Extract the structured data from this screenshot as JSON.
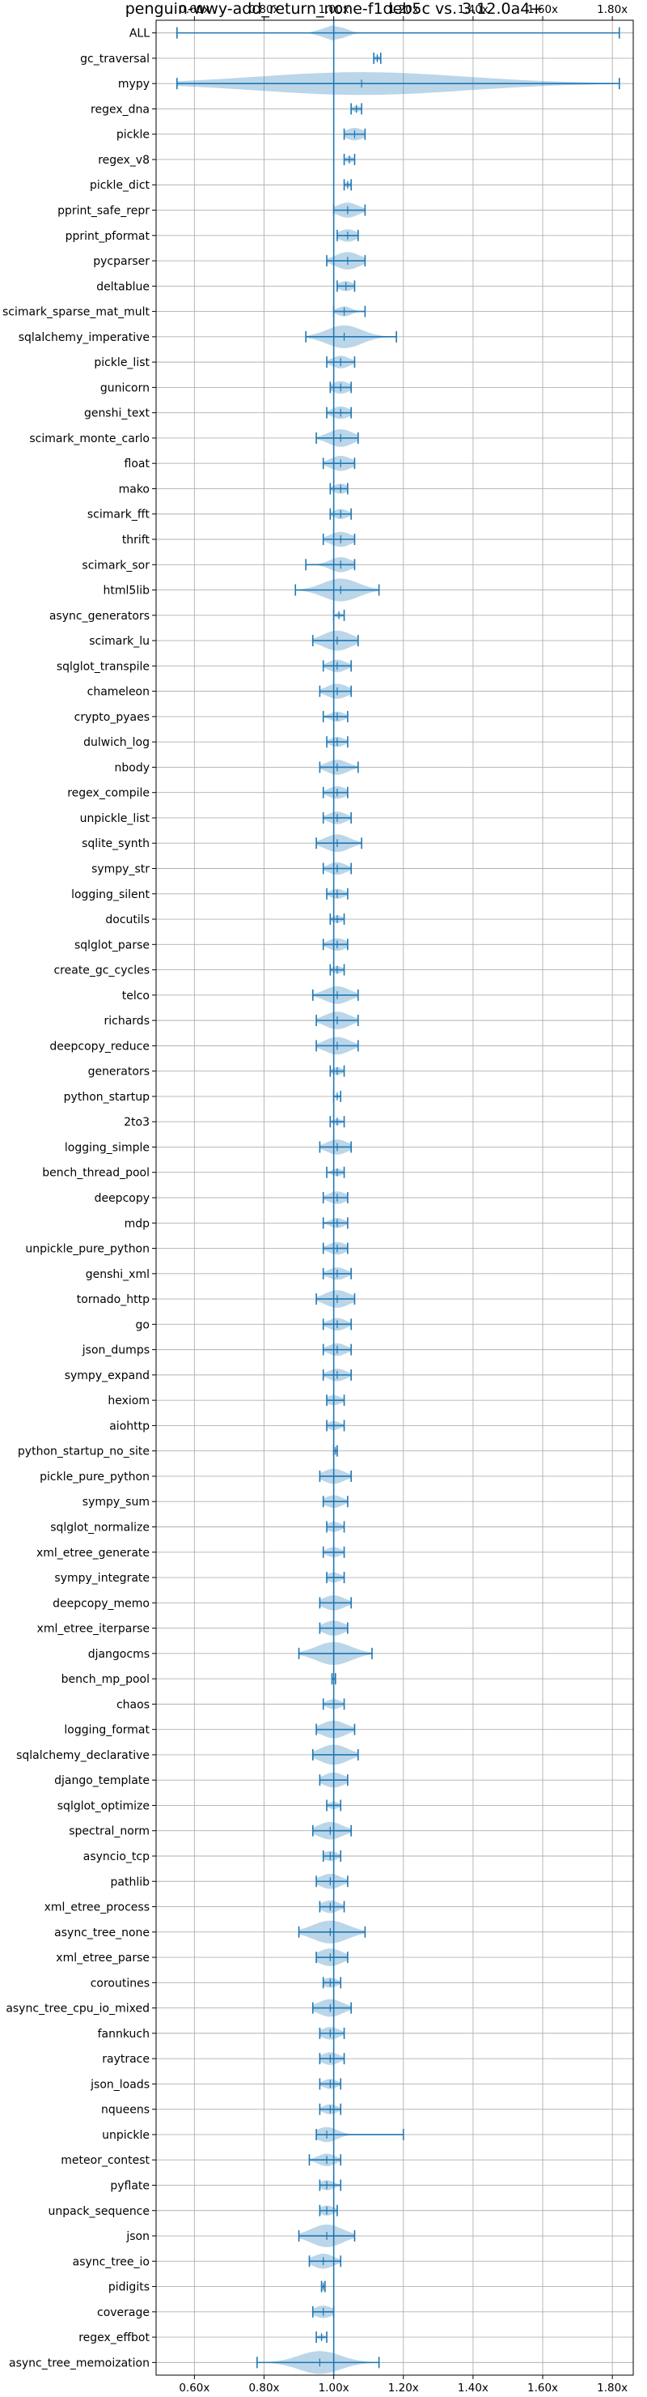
{
  "chart_data": {
    "type": "violin",
    "orientation": "horizontal",
    "title": "penguin-wwy-add_return_none-f1deb5c vs. 3.12.0a4+",
    "xlabel": "",
    "ylabel": "",
    "xlim": [
      0.49,
      1.86
    ],
    "x_ticks": [
      0.6,
      0.8,
      1.0,
      1.2,
      1.4,
      1.6,
      1.8
    ],
    "x_tick_labels": [
      "0.60x",
      "0.80x",
      "1.00x",
      "1.20x",
      "1.40x",
      "1.60x",
      "1.80x"
    ],
    "x_ticks_on_top_and_bottom": true,
    "grid": true,
    "reference_line": 1.0,
    "colors": {
      "violin_fill": "#1f77b4",
      "violin_alpha": 0.3,
      "bars": "#1f77b4",
      "grid": "#b0b0b0"
    },
    "benchmarks": [
      {
        "name": "ALL",
        "min": 0.55,
        "max": 1.82,
        "median": 1.0,
        "spread": 0.03
      },
      {
        "name": "gc_traversal",
        "min": 1.115,
        "max": 1.135,
        "median": 1.125,
        "spread": 0.01
      },
      {
        "name": "mypy",
        "min": 0.55,
        "max": 1.82,
        "median": 1.08,
        "spread": 0.3
      },
      {
        "name": "regex_dna",
        "min": 1.05,
        "max": 1.08,
        "median": 1.065,
        "spread": 0.012
      },
      {
        "name": "pickle",
        "min": 1.03,
        "max": 1.09,
        "median": 1.06,
        "spread": 0.025
      },
      {
        "name": "regex_v8",
        "min": 1.03,
        "max": 1.06,
        "median": 1.045,
        "spread": 0.012
      },
      {
        "name": "pickle_dict",
        "min": 1.03,
        "max": 1.05,
        "median": 1.04,
        "spread": 0.01
      },
      {
        "name": "pprint_safe_repr",
        "min": 1.0,
        "max": 1.09,
        "median": 1.04,
        "spread": 0.03
      },
      {
        "name": "pprint_pformat",
        "min": 1.01,
        "max": 1.07,
        "median": 1.04,
        "spread": 0.025
      },
      {
        "name": "pycparser",
        "min": 0.98,
        "max": 1.09,
        "median": 1.04,
        "spread": 0.035
      },
      {
        "name": "deltablue",
        "min": 1.01,
        "max": 1.06,
        "median": 1.035,
        "spread": 0.02
      },
      {
        "name": "scimark_sparse_mat_mult",
        "min": 1.0,
        "max": 1.09,
        "median": 1.03,
        "spread": 0.02
      },
      {
        "name": "sqlalchemy_imperative",
        "min": 0.92,
        "max": 1.18,
        "median": 1.03,
        "spread": 0.05
      },
      {
        "name": "pickle_list",
        "min": 0.98,
        "max": 1.06,
        "median": 1.02,
        "spread": 0.025
      },
      {
        "name": "gunicorn",
        "min": 0.99,
        "max": 1.05,
        "median": 1.02,
        "spread": 0.025
      },
      {
        "name": "genshi_text",
        "min": 0.98,
        "max": 1.05,
        "median": 1.02,
        "spread": 0.025
      },
      {
        "name": "scimark_monte_carlo",
        "min": 0.95,
        "max": 1.07,
        "median": 1.02,
        "spread": 0.035
      },
      {
        "name": "float",
        "min": 0.97,
        "max": 1.06,
        "median": 1.02,
        "spread": 0.03
      },
      {
        "name": "mako",
        "min": 0.99,
        "max": 1.04,
        "median": 1.02,
        "spread": 0.02
      },
      {
        "name": "scimark_fft",
        "min": 0.99,
        "max": 1.05,
        "median": 1.02,
        "spread": 0.02
      },
      {
        "name": "thrift",
        "min": 0.97,
        "max": 1.06,
        "median": 1.02,
        "spread": 0.03
      },
      {
        "name": "scimark_sor",
        "min": 0.92,
        "max": 1.06,
        "median": 1.02,
        "spread": 0.03
      },
      {
        "name": "html5lib",
        "min": 0.89,
        "max": 1.13,
        "median": 1.02,
        "spread": 0.05
      },
      {
        "name": "async_generators",
        "min": 1.0,
        "max": 1.03,
        "median": 1.015,
        "spread": 0.01
      },
      {
        "name": "scimark_lu",
        "min": 0.94,
        "max": 1.07,
        "median": 1.01,
        "spread": 0.04
      },
      {
        "name": "sqlglot_transpile",
        "min": 0.97,
        "max": 1.05,
        "median": 1.01,
        "spread": 0.025
      },
      {
        "name": "chameleon",
        "min": 0.96,
        "max": 1.05,
        "median": 1.01,
        "spread": 0.03
      },
      {
        "name": "crypto_pyaes",
        "min": 0.97,
        "max": 1.04,
        "median": 1.01,
        "spread": 0.02
      },
      {
        "name": "dulwich_log",
        "min": 0.98,
        "max": 1.04,
        "median": 1.01,
        "spread": 0.02
      },
      {
        "name": "nbody",
        "min": 0.96,
        "max": 1.07,
        "median": 1.01,
        "spread": 0.03
      },
      {
        "name": "regex_compile",
        "min": 0.97,
        "max": 1.04,
        "median": 1.01,
        "spread": 0.025
      },
      {
        "name": "unpickle_list",
        "min": 0.97,
        "max": 1.05,
        "median": 1.01,
        "spread": 0.025
      },
      {
        "name": "sqlite_synth",
        "min": 0.95,
        "max": 1.08,
        "median": 1.01,
        "spread": 0.035
      },
      {
        "name": "sympy_str",
        "min": 0.97,
        "max": 1.05,
        "median": 1.01,
        "spread": 0.025
      },
      {
        "name": "logging_silent",
        "min": 0.98,
        "max": 1.04,
        "median": 1.01,
        "spread": 0.02
      },
      {
        "name": "docutils",
        "min": 0.99,
        "max": 1.03,
        "median": 1.01,
        "spread": 0.015
      },
      {
        "name": "sqlglot_parse",
        "min": 0.97,
        "max": 1.04,
        "median": 1.01,
        "spread": 0.025
      },
      {
        "name": "create_gc_cycles",
        "min": 0.99,
        "max": 1.03,
        "median": 1.01,
        "spread": 0.015
      },
      {
        "name": "telco",
        "min": 0.94,
        "max": 1.07,
        "median": 1.01,
        "spread": 0.035
      },
      {
        "name": "richards",
        "min": 0.95,
        "max": 1.07,
        "median": 1.01,
        "spread": 0.035
      },
      {
        "name": "deepcopy_reduce",
        "min": 0.95,
        "max": 1.07,
        "median": 1.01,
        "spread": 0.035
      },
      {
        "name": "generators",
        "min": 0.99,
        "max": 1.03,
        "median": 1.01,
        "spread": 0.015
      },
      {
        "name": "python_startup",
        "min": 1.0,
        "max": 1.02,
        "median": 1.01,
        "spread": 0.006
      },
      {
        "name": "2to3",
        "min": 0.99,
        "max": 1.03,
        "median": 1.01,
        "spread": 0.012
      },
      {
        "name": "logging_simple",
        "min": 0.96,
        "max": 1.05,
        "median": 1.01,
        "spread": 0.03
      },
      {
        "name": "bench_thread_pool",
        "min": 0.98,
        "max": 1.03,
        "median": 1.01,
        "spread": 0.015
      },
      {
        "name": "deepcopy",
        "min": 0.97,
        "max": 1.04,
        "median": 1.01,
        "spread": 0.025
      },
      {
        "name": "mdp",
        "min": 0.97,
        "max": 1.04,
        "median": 1.01,
        "spread": 0.02
      },
      {
        "name": "unpickle_pure_python",
        "min": 0.97,
        "max": 1.04,
        "median": 1.01,
        "spread": 0.025
      },
      {
        "name": "genshi_xml",
        "min": 0.97,
        "max": 1.05,
        "median": 1.01,
        "spread": 0.025
      },
      {
        "name": "tornado_http",
        "min": 0.95,
        "max": 1.06,
        "median": 1.01,
        "spread": 0.035
      },
      {
        "name": "go",
        "min": 0.97,
        "max": 1.05,
        "median": 1.01,
        "spread": 0.025
      },
      {
        "name": "json_dumps",
        "min": 0.97,
        "max": 1.05,
        "median": 1.01,
        "spread": 0.025
      },
      {
        "name": "sympy_expand",
        "min": 0.97,
        "max": 1.05,
        "median": 1.01,
        "spread": 0.025
      },
      {
        "name": "hexiom",
        "min": 0.98,
        "max": 1.03,
        "median": 1.0,
        "spread": 0.02
      },
      {
        "name": "aiohttp",
        "min": 0.98,
        "max": 1.03,
        "median": 1.0,
        "spread": 0.018
      },
      {
        "name": "python_startup_no_site",
        "min": 1.0,
        "max": 1.01,
        "median": 1.005,
        "spread": 0.005
      },
      {
        "name": "pickle_pure_python",
        "min": 0.96,
        "max": 1.05,
        "median": 1.0,
        "spread": 0.03
      },
      {
        "name": "sympy_sum",
        "min": 0.97,
        "max": 1.04,
        "median": 1.0,
        "spread": 0.025
      },
      {
        "name": "sqlglot_normalize",
        "min": 0.98,
        "max": 1.03,
        "median": 1.0,
        "spread": 0.02
      },
      {
        "name": "xml_etree_generate",
        "min": 0.97,
        "max": 1.03,
        "median": 1.0,
        "spread": 0.02
      },
      {
        "name": "sympy_integrate",
        "min": 0.98,
        "max": 1.03,
        "median": 1.0,
        "spread": 0.02
      },
      {
        "name": "deepcopy_memo",
        "min": 0.96,
        "max": 1.05,
        "median": 1.0,
        "spread": 0.03
      },
      {
        "name": "xml_etree_iterparse",
        "min": 0.96,
        "max": 1.04,
        "median": 1.0,
        "spread": 0.03
      },
      {
        "name": "djangocms",
        "min": 0.9,
        "max": 1.11,
        "median": 1.0,
        "spread": 0.05
      },
      {
        "name": "bench_mp_pool",
        "min": 0.995,
        "max": 1.005,
        "median": 1.0,
        "spread": 0.003
      },
      {
        "name": "chaos",
        "min": 0.97,
        "max": 1.03,
        "median": 1.0,
        "spread": 0.02
      },
      {
        "name": "logging_format",
        "min": 0.95,
        "max": 1.06,
        "median": 1.0,
        "spread": 0.035
      },
      {
        "name": "sqlalchemy_declarative",
        "min": 0.94,
        "max": 1.07,
        "median": 1.0,
        "spread": 0.04
      },
      {
        "name": "django_template",
        "min": 0.96,
        "max": 1.04,
        "median": 1.0,
        "spread": 0.03
      },
      {
        "name": "sqlglot_optimize",
        "min": 0.98,
        "max": 1.02,
        "median": 1.0,
        "spread": 0.015
      },
      {
        "name": "spectral_norm",
        "min": 0.94,
        "max": 1.05,
        "median": 0.99,
        "spread": 0.035
      },
      {
        "name": "asyncio_tcp",
        "min": 0.97,
        "max": 1.02,
        "median": 0.99,
        "spread": 0.02
      },
      {
        "name": "pathlib",
        "min": 0.95,
        "max": 1.04,
        "median": 0.99,
        "spread": 0.03
      },
      {
        "name": "xml_etree_process",
        "min": 0.96,
        "max": 1.03,
        "median": 0.99,
        "spread": 0.025
      },
      {
        "name": "async_tree_none",
        "min": 0.9,
        "max": 1.09,
        "median": 0.99,
        "spread": 0.05
      },
      {
        "name": "xml_etree_parse",
        "min": 0.95,
        "max": 1.04,
        "median": 0.99,
        "spread": 0.035
      },
      {
        "name": "coroutines",
        "min": 0.97,
        "max": 1.02,
        "median": 0.99,
        "spread": 0.02
      },
      {
        "name": "async_tree_cpu_io_mixed",
        "min": 0.94,
        "max": 1.05,
        "median": 0.99,
        "spread": 0.035
      },
      {
        "name": "fannkuch",
        "min": 0.96,
        "max": 1.03,
        "median": 0.99,
        "spread": 0.025
      },
      {
        "name": "raytrace",
        "min": 0.96,
        "max": 1.03,
        "median": 0.99,
        "spread": 0.025
      },
      {
        "name": "json_loads",
        "min": 0.96,
        "max": 1.02,
        "median": 0.99,
        "spread": 0.02
      },
      {
        "name": "nqueens",
        "min": 0.96,
        "max": 1.02,
        "median": 0.99,
        "spread": 0.02
      },
      {
        "name": "unpickle",
        "min": 0.95,
        "max": 1.2,
        "median": 0.98,
        "spread": 0.03
      },
      {
        "name": "meteor_contest",
        "min": 0.93,
        "max": 1.02,
        "median": 0.98,
        "spread": 0.025
      },
      {
        "name": "pyflate",
        "min": 0.96,
        "max": 1.02,
        "median": 0.98,
        "spread": 0.02
      },
      {
        "name": "unpack_sequence",
        "min": 0.96,
        "max": 1.01,
        "median": 0.98,
        "spread": 0.02
      },
      {
        "name": "json",
        "min": 0.9,
        "max": 1.06,
        "median": 0.98,
        "spread": 0.045
      },
      {
        "name": "async_tree_io",
        "min": 0.93,
        "max": 1.02,
        "median": 0.97,
        "spread": 0.03
      },
      {
        "name": "pidigits",
        "min": 0.965,
        "max": 0.975,
        "median": 0.97,
        "spread": 0.004
      },
      {
        "name": "coverage",
        "min": 0.94,
        "max": 1.0,
        "median": 0.97,
        "spread": 0.025
      },
      {
        "name": "regex_effbot",
        "min": 0.95,
        "max": 0.98,
        "median": 0.965,
        "spread": 0.01
      },
      {
        "name": "async_tree_memoization",
        "min": 0.78,
        "max": 1.13,
        "median": 0.96,
        "spread": 0.06
      }
    ]
  }
}
